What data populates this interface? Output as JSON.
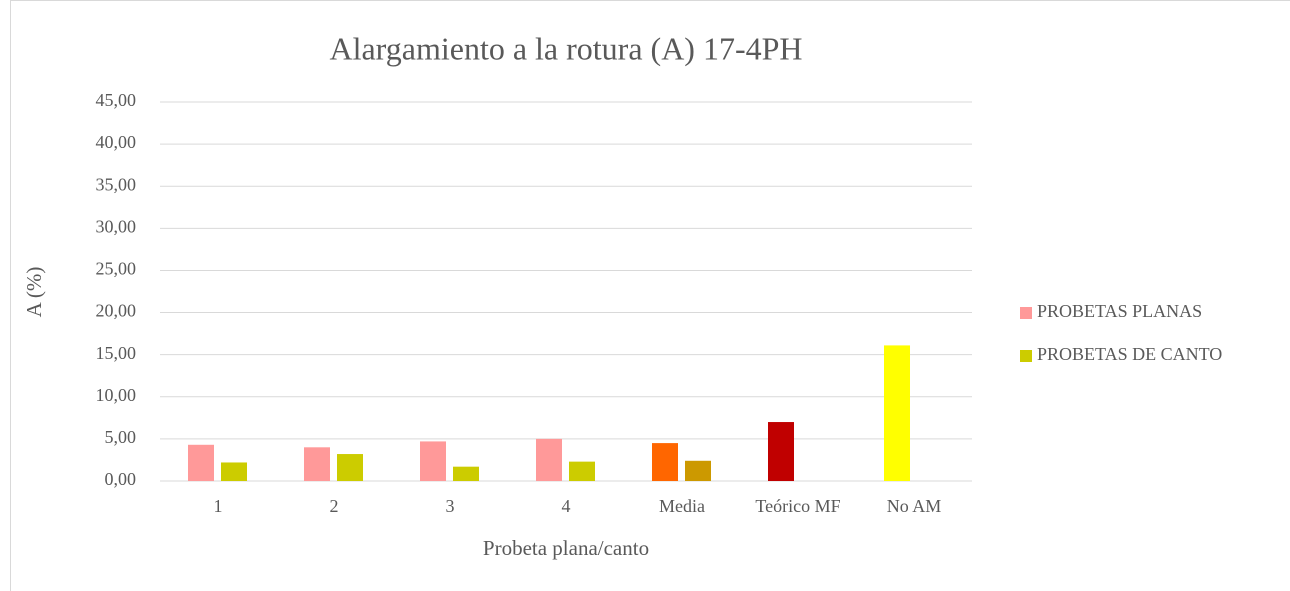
{
  "chart_data": {
    "type": "bar",
    "title": "Alargamiento a la rotura (A) 17-4PH",
    "x_label": "Probeta plana/canto",
    "y_label": "A (%)",
    "categories": [
      "1",
      "2",
      "3",
      "4",
      "Media",
      "Teórico MF",
      "No AM"
    ],
    "series": [
      {
        "name": "PROBETAS PLANAS",
        "color": "#ff9999",
        "colors": [
          "#ff9999",
          "#ff9999",
          "#ff9999",
          "#ff9999",
          "#ff6600",
          "#c00000",
          "#ffff00"
        ],
        "values": [
          4.3,
          4.0,
          4.7,
          5.0,
          4.5,
          7.0,
          16.1
        ]
      },
      {
        "name": "PROBETAS DE CANTO",
        "color": "#cccc00",
        "colors": [
          "#cccc00",
          "#cccc00",
          "#cccc00",
          "#cccc00",
          "#cc9900",
          null,
          null
        ],
        "values": [
          2.2,
          3.2,
          1.7,
          2.3,
          2.4,
          null,
          null
        ]
      }
    ],
    "ylim": [
      0,
      45
    ],
    "yticks": [
      {
        "value": 0,
        "label": "0,00"
      },
      {
        "value": 5,
        "label": "5,00"
      },
      {
        "value": 10,
        "label": "10,00"
      },
      {
        "value": 15,
        "label": "15,00"
      },
      {
        "value": 20,
        "label": "20,00"
      },
      {
        "value": 25,
        "label": "25,00"
      },
      {
        "value": 30,
        "label": "30,00"
      },
      {
        "value": 35,
        "label": "35,00"
      },
      {
        "value": 40,
        "label": "40,00"
      },
      {
        "value": 45,
        "label": "45,00"
      }
    ],
    "grid": true,
    "legend": "right"
  }
}
